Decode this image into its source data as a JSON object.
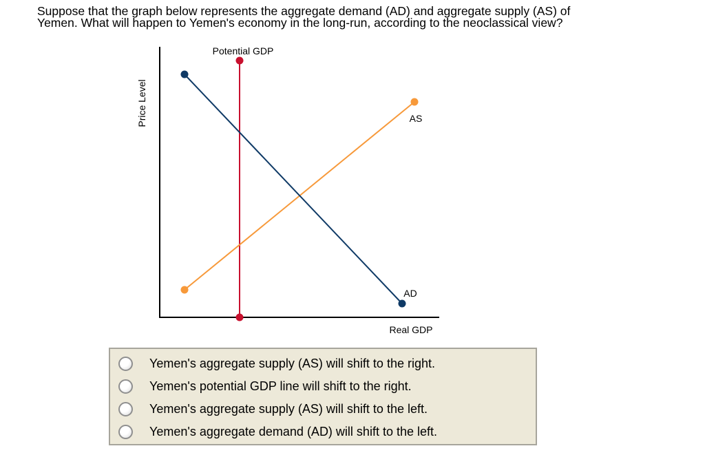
{
  "question": {
    "line1": "Suppose that the graph below represents the aggregate demand (AD) and aggregate supply (AS) of",
    "line2": "Yemen. What will happen to Yemen's economy in the long-run, according to the neoclassical view?"
  },
  "graph": {
    "ylabel": "Price Level",
    "xlabel": "Real GDP",
    "potential_label": "Potential GDP",
    "as_label": "AS",
    "ad_label": "AD",
    "colors": {
      "axis": "#000000",
      "potential": "#c8102e",
      "as": "#f7993a",
      "ad": "#0f3a66"
    }
  },
  "choices": [
    {
      "label": "Yemen's aggregate supply (AS) will shift to the right.",
      "selected": false
    },
    {
      "label": "Yemen's potential GDP line will shift to the right.",
      "selected": false
    },
    {
      "label": "Yemen's aggregate supply (AS) will shift to the left.",
      "selected": false
    },
    {
      "label": "Yemen's aggregate demand (AD) will shift to the left.",
      "selected": false
    }
  ]
}
